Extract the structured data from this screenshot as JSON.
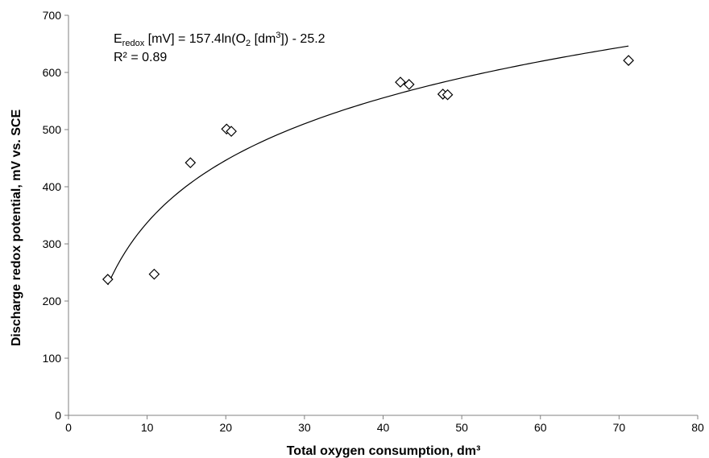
{
  "chart_data": {
    "type": "scatter",
    "xlabel": "Total oxygen consumption, dm³",
    "ylabel": "Discharge redox potential, mV vs. SCE",
    "xlim": [
      0,
      80
    ],
    "ylim": [
      0,
      700
    ],
    "x_ticks": [
      0,
      10,
      20,
      30,
      40,
      50,
      60,
      70,
      80
    ],
    "y_ticks": [
      0,
      100,
      200,
      300,
      400,
      500,
      600,
      700
    ],
    "grid": false,
    "marker": "diamond-open",
    "marker_color": "#000000",
    "series": [
      {
        "points": [
          {
            "x": 5.0,
            "y": 238
          },
          {
            "x": 10.9,
            "y": 247
          },
          {
            "x": 15.5,
            "y": 442
          },
          {
            "x": 20.1,
            "y": 501
          },
          {
            "x": 20.7,
            "y": 497
          },
          {
            "x": 42.2,
            "y": 583
          },
          {
            "x": 43.3,
            "y": 579
          },
          {
            "x": 47.6,
            "y": 562
          },
          {
            "x": 48.2,
            "y": 561
          },
          {
            "x": 71.2,
            "y": 621
          }
        ]
      }
    ],
    "trendline": {
      "type": "logarithmic",
      "a": 157.4,
      "b": -25.2,
      "x_from": 5.0,
      "x_to": 71.2,
      "color": "#000000"
    },
    "annotation": {
      "eq_E": "E",
      "eq_sub": "redox",
      "eq_mid": " [mV] = 157.4ln(O",
      "eq_sub2": "2",
      "eq_mid2": " [dm",
      "eq_sup": "3",
      "eq_end": "]) - 25.2",
      "r2": "R² = 0.89"
    }
  }
}
